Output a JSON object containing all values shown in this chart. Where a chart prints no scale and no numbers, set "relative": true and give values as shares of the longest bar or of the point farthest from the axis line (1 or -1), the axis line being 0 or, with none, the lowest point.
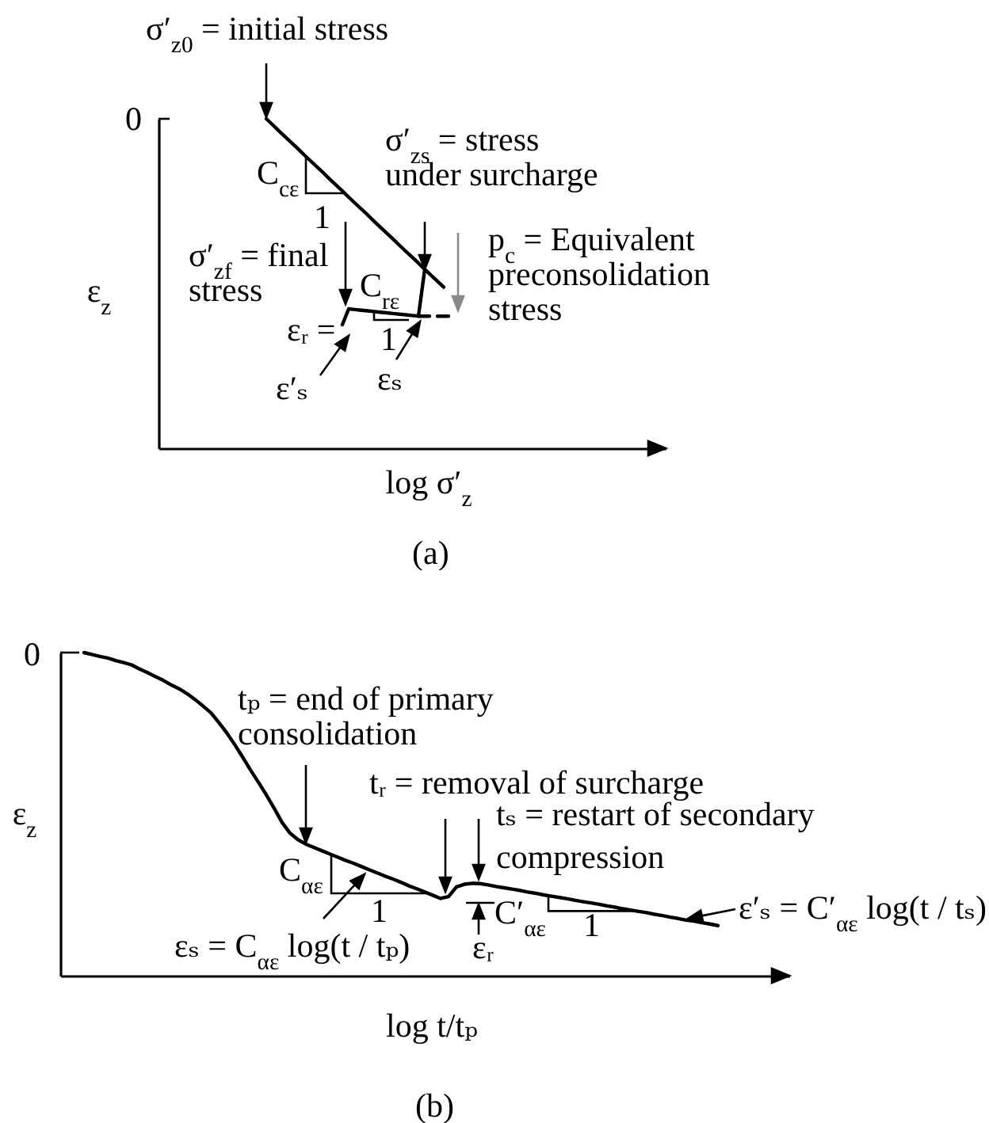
{
  "chart_data": [
    {
      "type": "line",
      "relative": true,
      "xlabel": "log σ′$_{z}$",
      "ylabel": "ε$_{z}$",
      "categories": [
        null,
        null,
        null,
        null,
        null,
        null,
        null,
        null,
        null,
        null,
        null,
        null,
        null,
        null,
        null,
        null,
        null,
        null,
        null,
        null,
        null,
        null,
        null,
        null,
        null,
        null,
        null,
        null,
        null,
        null,
        null,
        null,
        null,
        null,
        null,
        null,
        null,
        null,
        null,
        null,
        null,
        null,
        null,
        null,
        null,
        null,
        null,
        null,
        null,
        null,
        null,
        null,
        null,
        null,
        null,
        null,
        null,
        null,
        null,
        null,
        null,
        null,
        null,
        null,
        null,
        null,
        null,
        null,
        null,
        null,
        null,
        null,
        null,
        null,
        null,
        null,
        null,
        null,
        null,
        null,
        null
      ],
      "series": [
        {
          "color": "#000000",
          "values": [
            null,
            null,
            null,
            null,
            null,
            null,
            null,
            null,
            null,
            null,
            null,
            null,
            null,
            null,
            null,
            null,
            null,
            1,
            0.982,
            0.963,
            0.945,
            0.927,
            0.909,
            0.89,
            0.872,
            0.854,
            0.836,
            0.817,
            0.799,
            0.781,
            0.762,
            0.744,
            0.726,
            0.708,
            0.689,
            0.671,
            0.653,
            0.635,
            0.616,
            0.598,
            0.58,
            0.562,
            0.543,
            0.525,
            0.507,
            0.489,
            null,
            null,
            null,
            null,
            null,
            null,
            null,
            null,
            null,
            null,
            null,
            null,
            null,
            null,
            null,
            null,
            null,
            null,
            null,
            null,
            null,
            null,
            null,
            null,
            null,
            null,
            null,
            null,
            null,
            null,
            null,
            null,
            null,
            null,
            null
          ]
        },
        {
          "color": "#000000",
          "values": [
            null,
            null,
            null,
            null,
            null,
            null,
            null,
            null,
            null,
            null,
            null,
            null,
            null,
            null,
            null,
            null,
            null,
            null,
            null,
            null,
            null,
            null,
            null,
            null,
            null,
            null,
            null,
            null,
            null,
            0.375,
            0.423,
            0.421,
            0.419,
            0.417,
            0.415,
            0.413,
            0.411,
            0.409,
            0.407,
            0.405,
            0.403,
            0.401,
            0.543,
            null,
            null,
            null,
            null,
            null,
            null,
            null,
            null,
            null,
            null,
            null,
            null,
            null,
            null,
            null,
            null,
            null,
            null,
            null,
            null,
            null,
            null,
            null,
            null,
            null,
            null,
            null,
            null,
            null,
            null,
            null,
            null,
            null,
            null,
            null,
            null,
            null,
            null
          ]
        },
        {
          "color": "#000000",
          "line_style": "dashed",
          "values": [
            null,
            null,
            null,
            null,
            null,
            null,
            null,
            null,
            null,
            null,
            null,
            null,
            null,
            null,
            null,
            null,
            null,
            null,
            null,
            null,
            null,
            null,
            null,
            null,
            null,
            null,
            null,
            null,
            null,
            null,
            null,
            null,
            null,
            null,
            null,
            null,
            null,
            null,
            null,
            null,
            null,
            0.401,
            0.401,
            0.401,
            0.401,
            0.401,
            0.401,
            0.401,
            null,
            null,
            null,
            null,
            null,
            null,
            null,
            null,
            null,
            null,
            null,
            null,
            null,
            null,
            null,
            null,
            null,
            null,
            null,
            null,
            null,
            null,
            null,
            null,
            null,
            null,
            null,
            null,
            null,
            null,
            null,
            null,
            null
          ]
        }
      ],
      "annotations": [
        "0",
        "σ′$_{z0}$ = initial stress",
        "σ′$_{zs}$ = stress\nunder surcharge",
        "p$_{c}$ = Equivalent\npreconsolidation\nstress",
        "σ′$_{zf}$ = final\nstress",
        "C$_{cε}$",
        "1",
        "C$_{rε}$",
        "1",
        "εᵣ =",
        "ε′ₛ",
        "εₛ",
        "(a)"
      ]
    },
    {
      "type": "line",
      "relative": true,
      "xlabel": "log t/tₚ",
      "ylabel": "ε$_{z}$",
      "categories": [
        null,
        null,
        null,
        null,
        null,
        null,
        null,
        null,
        null,
        null,
        null,
        null,
        null,
        null,
        null,
        null,
        null,
        null,
        null,
        null,
        null,
        null,
        null,
        null,
        null,
        null,
        null,
        null,
        null,
        null,
        null,
        null,
        null,
        null,
        null,
        null,
        null,
        null,
        null,
        null,
        null,
        null,
        null,
        null,
        null,
        null,
        null,
        null,
        null,
        null,
        null,
        null,
        null,
        null,
        null,
        null,
        null,
        null,
        null,
        null,
        null,
        null,
        null,
        null,
        null,
        null,
        null,
        null,
        null,
        null,
        null,
        null,
        null,
        null,
        null,
        null,
        null,
        null,
        null,
        null,
        null,
        null,
        null,
        null,
        null,
        null,
        null,
        null,
        null,
        null,
        null,
        null,
        null
      ],
      "series": [
        {
          "color": "#000000",
          "values": [
            null,
            null,
            null,
            1,
            0.994,
            0.988,
            0.983,
            0.975,
            0.969,
            0.962,
            0.949,
            0.938,
            0.926,
            0.914,
            0.9,
            0.888,
            0.873,
            0.855,
            0.835,
            0.814,
            0.784,
            0.752,
            0.716,
            0.677,
            0.637,
            0.599,
            0.56,
            0.518,
            0.474,
            0.441,
            0.421,
            0.407,
            0.397,
            0.387,
            0.377,
            0.367,
            0.357,
            0.348,
            0.338,
            0.328,
            0.318,
            0.308,
            0.299,
            0.289,
            0.278,
            0.269,
            0.259,
            0.249,
            0.239,
            0.245,
            0.275,
            0.283,
            0.286,
            0.285,
            0.281,
            0.276,
            0.272,
            0.268,
            0.264,
            0.259,
            0.255,
            0.25,
            0.246,
            0.242,
            0.238,
            0.233,
            0.229,
            0.225,
            0.221,
            0.216,
            0.212,
            0.207,
            0.203,
            0.199,
            0.195,
            0.19,
            0.186,
            0.181,
            0.177,
            0.172,
            0.169,
            0.164,
            0.16,
            0.155,
            null,
            null,
            null,
            null,
            null,
            null,
            null,
            null,
            null
          ]
        }
      ],
      "annotations": [
        "0",
        "tₚ = end of primary\nconsolidation",
        "tᵣ = removal of surcharge",
        "tₛ = restart of secondary\ncompression",
        "C$_{αε}$",
        "1",
        "εₛ = C$_{αε}$ log(t / tₚ)",
        "εᵣ",
        "C′$_{αε}$",
        "1",
        "ε′ₛ = C′$_{αε}$ log(t / tₛ)",
        "(b)"
      ]
    }
  ]
}
